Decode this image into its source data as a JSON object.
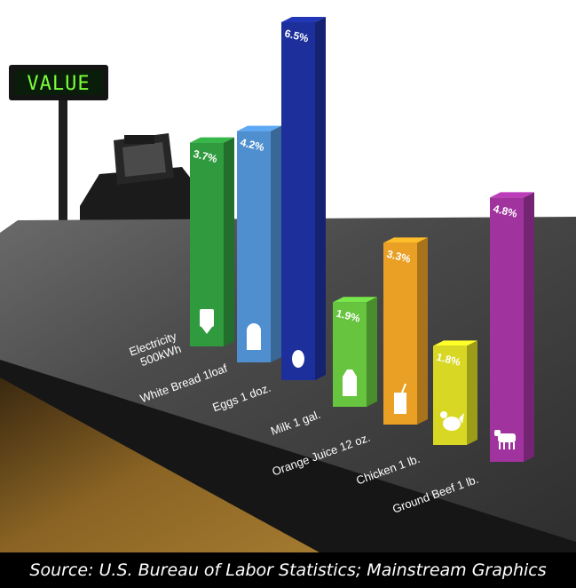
{
  "chart_data": {
    "type": "bar",
    "title": "",
    "categories": [
      "Electricity 500kWh",
      "White Bread 1loaf",
      "Eggs 1 doz.",
      "Milk 1 gal.",
      "Orange Juice 12 oz.",
      "Chicken 1 lb.",
      "Ground Beef 1 lb."
    ],
    "category_lines": [
      [
        "Electricity",
        "500kWh"
      ],
      [
        "White Bread 1loaf"
      ],
      [
        "Eggs 1 doz."
      ],
      [
        "Milk 1 gal."
      ],
      [
        "Orange Juice 12 oz."
      ],
      [
        "Chicken 1 lb."
      ],
      [
        "Ground Beef 1 lb."
      ]
    ],
    "values": [
      3.7,
      4.2,
      6.5,
      1.9,
      3.3,
      1.8,
      4.8
    ],
    "value_labels": [
      "3.7%",
      "4.2%",
      "6.5%",
      "1.9%",
      "3.3%",
      "1.8%",
      "4.8%"
    ],
    "bar_colors": [
      "#2f9a3e",
      "#4f8fd0",
      "#1c2f9b",
      "#66c43e",
      "#e9a024",
      "#d8d824",
      "#a0339e"
    ],
    "icons": [
      "electric-meter-icon",
      "bread-loaf-icon",
      "egg-icon",
      "milk-carton-icon",
      "juice-box-icon",
      "chicken-icon",
      "cow-icon"
    ],
    "grid": false,
    "legend": "none"
  },
  "register": {
    "display_text": "VALUE"
  },
  "source_text": "Source:  U.S. Bureau of Labor Statistics; Mainstream Graphics"
}
